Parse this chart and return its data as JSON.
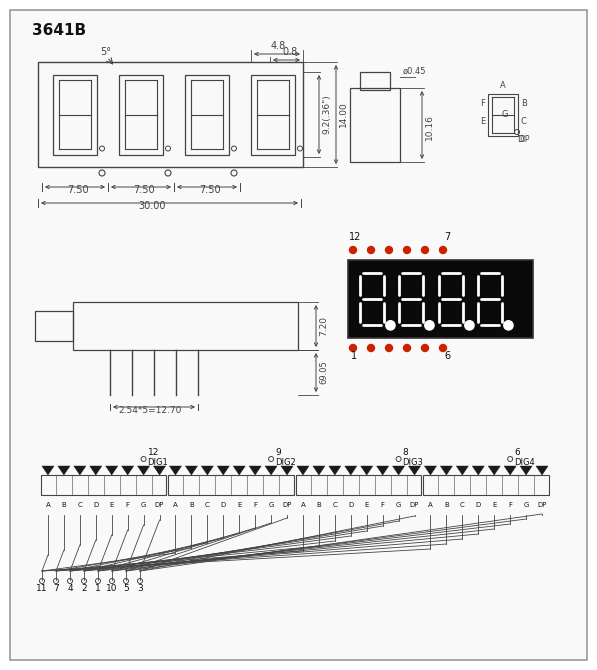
{
  "title": "3641B",
  "bg_color": "#ffffff",
  "border_color": "#aaaaaa",
  "line_color": "#444444",
  "dim_color": "#444444",
  "red_dot_color": "#cc2200",
  "display_bg": "#0a0a0a",
  "segment_labels": [
    "A",
    "B",
    "C",
    "D",
    "E",
    "F",
    "G",
    "DP"
  ],
  "pin_numbers_bottom": [
    "11",
    "7",
    "4",
    "2",
    "1",
    "10",
    "5",
    "3"
  ],
  "dig_pins": [
    {
      "num": "12",
      "label": "DIG1",
      "col": 7
    },
    {
      "num": "9",
      "label": "DIG2",
      "col": 15
    },
    {
      "num": "8",
      "label": "DIG3",
      "col": 23
    },
    {
      "num": "6",
      "label": "DIG4",
      "col": 30
    }
  ],
  "wire_sources": [
    0,
    1,
    2,
    3,
    4,
    5,
    6,
    7
  ],
  "wire_labels": [
    "11",
    "7",
    "4",
    "2",
    "1",
    "10",
    "5",
    "3"
  ]
}
